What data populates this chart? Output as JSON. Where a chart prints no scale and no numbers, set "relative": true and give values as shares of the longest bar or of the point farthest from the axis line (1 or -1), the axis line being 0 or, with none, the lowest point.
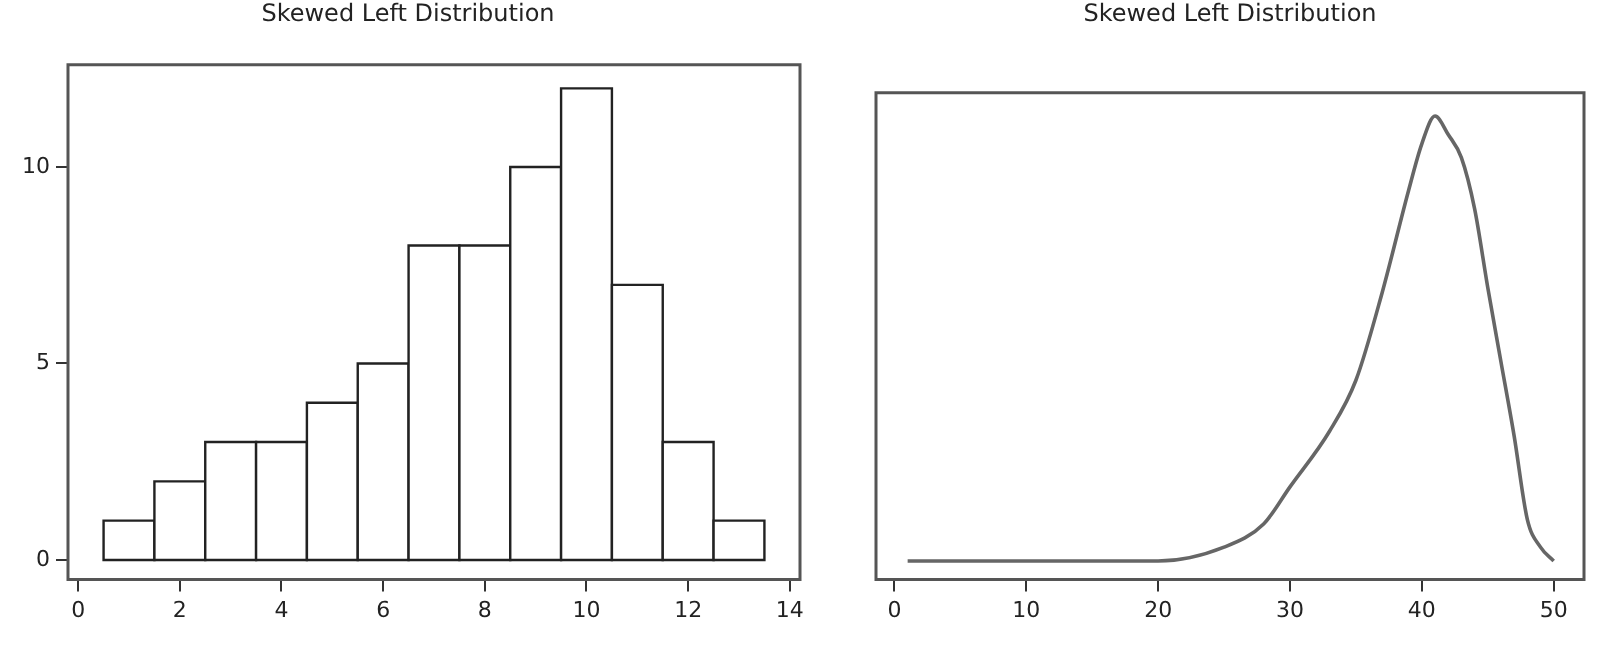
{
  "chart_data": [
    {
      "type": "histogram",
      "title": "Skewed Left Distribution",
      "bins": [
        0.5,
        1.5,
        2.5,
        3.5,
        4.5,
        5.5,
        6.5,
        7.5,
        8.5,
        9.5,
        10.5,
        11.5,
        12.5,
        13.5
      ],
      "values": [
        1,
        2,
        3,
        3,
        4,
        5,
        8,
        8,
        10,
        12,
        7,
        3,
        1
      ],
      "color": "#222222",
      "xlim": [
        -0.2,
        14.2
      ],
      "xticks": [
        0,
        2,
        4,
        6,
        8,
        10,
        12,
        14
      ],
      "ylim": [
        -0.5,
        12.6
      ],
      "yticks": [
        0,
        5,
        10
      ],
      "grid": false,
      "legend": false
    },
    {
      "type": "line",
      "title": "Skewed Left Distribution",
      "relative": true,
      "x": [
        1,
        10,
        15,
        20,
        25,
        28,
        30,
        33,
        35,
        37,
        39,
        40,
        41,
        42,
        43,
        44,
        45,
        46,
        47,
        48,
        49,
        50
      ],
      "values": [
        0.04,
        0.04,
        0.04,
        0.04,
        0.07,
        0.12,
        0.2,
        0.32,
        0.43,
        0.62,
        0.84,
        0.94,
        1,
        0.96,
        0.91,
        0.8,
        0.63,
        0.47,
        0.31,
        0.13,
        0.07,
        0.04
      ],
      "color": "#666666",
      "xlim": [
        -1.4,
        52.3
      ],
      "xticks": [
        0,
        10,
        20,
        30,
        40,
        50
      ],
      "grid": false,
      "legend": false,
      "marker": "none",
      "line_style": "solid"
    }
  ]
}
